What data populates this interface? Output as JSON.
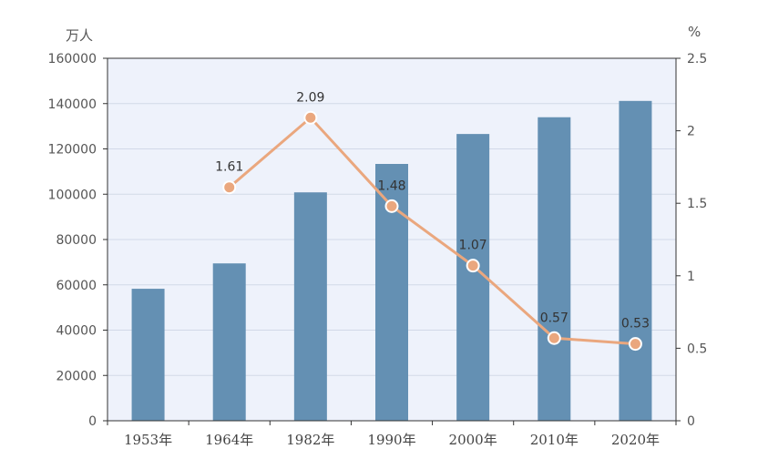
{
  "chart_data": {
    "type": "bar",
    "categories": [
      "1953年",
      "1964年",
      "1982年",
      "1990年",
      "2000年",
      "2010年",
      "2020年"
    ],
    "left_axis": {
      "unit": "万人",
      "ylim": [
        0,
        160000
      ],
      "ticks": [
        "0",
        "20000",
        "40000",
        "60000",
        "80000",
        "100000",
        "120000",
        "140000",
        "160000"
      ]
    },
    "right_axis": {
      "unit": "%",
      "ylim": [
        0,
        2.5
      ],
      "ticks": [
        "0",
        "0.5",
        "1",
        "1.5",
        "2",
        "2.5"
      ]
    },
    "series": [
      {
        "type": "bar",
        "axis": "left",
        "color": "#6490b3",
        "values": [
          58260,
          69458,
          100818,
          113368,
          126583,
          133972,
          141178
        ]
      },
      {
        "type": "line",
        "axis": "right",
        "color": "#eaa77e",
        "values": [
          null,
          1.61,
          2.09,
          1.48,
          1.07,
          0.57,
          0.53
        ],
        "labels": [
          "",
          "1.61",
          "2.09",
          "1.48",
          "1.07",
          "0.57",
          "0.53"
        ]
      }
    ],
    "plot_background": "#eef2fb",
    "grid": true
  }
}
